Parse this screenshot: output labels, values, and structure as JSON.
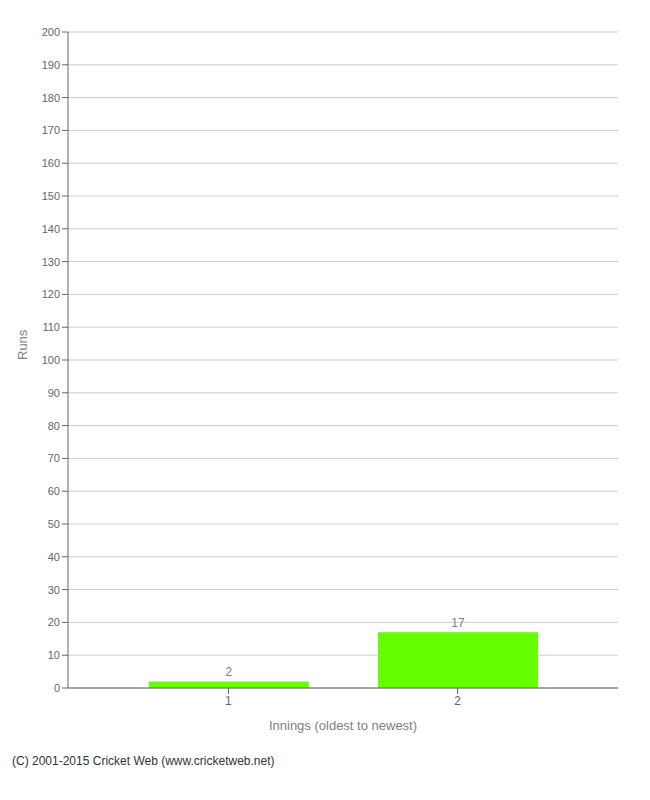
{
  "chart_data": {
    "type": "bar",
    "x": [
      1,
      2
    ],
    "values": [
      2,
      17
    ],
    "color": "#66ff00",
    "xlabel": "Innings (oldest to newest)",
    "ylabel": "Runs",
    "xlim": [
      0.3,
      2.7
    ],
    "xticks": [
      1,
      2
    ],
    "ylim": [
      0,
      200
    ],
    "yticks": [
      0,
      10,
      20,
      30,
      40,
      50,
      60,
      70,
      80,
      90,
      100,
      110,
      120,
      130,
      140,
      150,
      160,
      170,
      180,
      190,
      200
    ],
    "grid": true,
    "data_labels": true,
    "annotations": [
      "(C) 2001-2015 Cricket Web (www.cricketweb.net)"
    ]
  }
}
